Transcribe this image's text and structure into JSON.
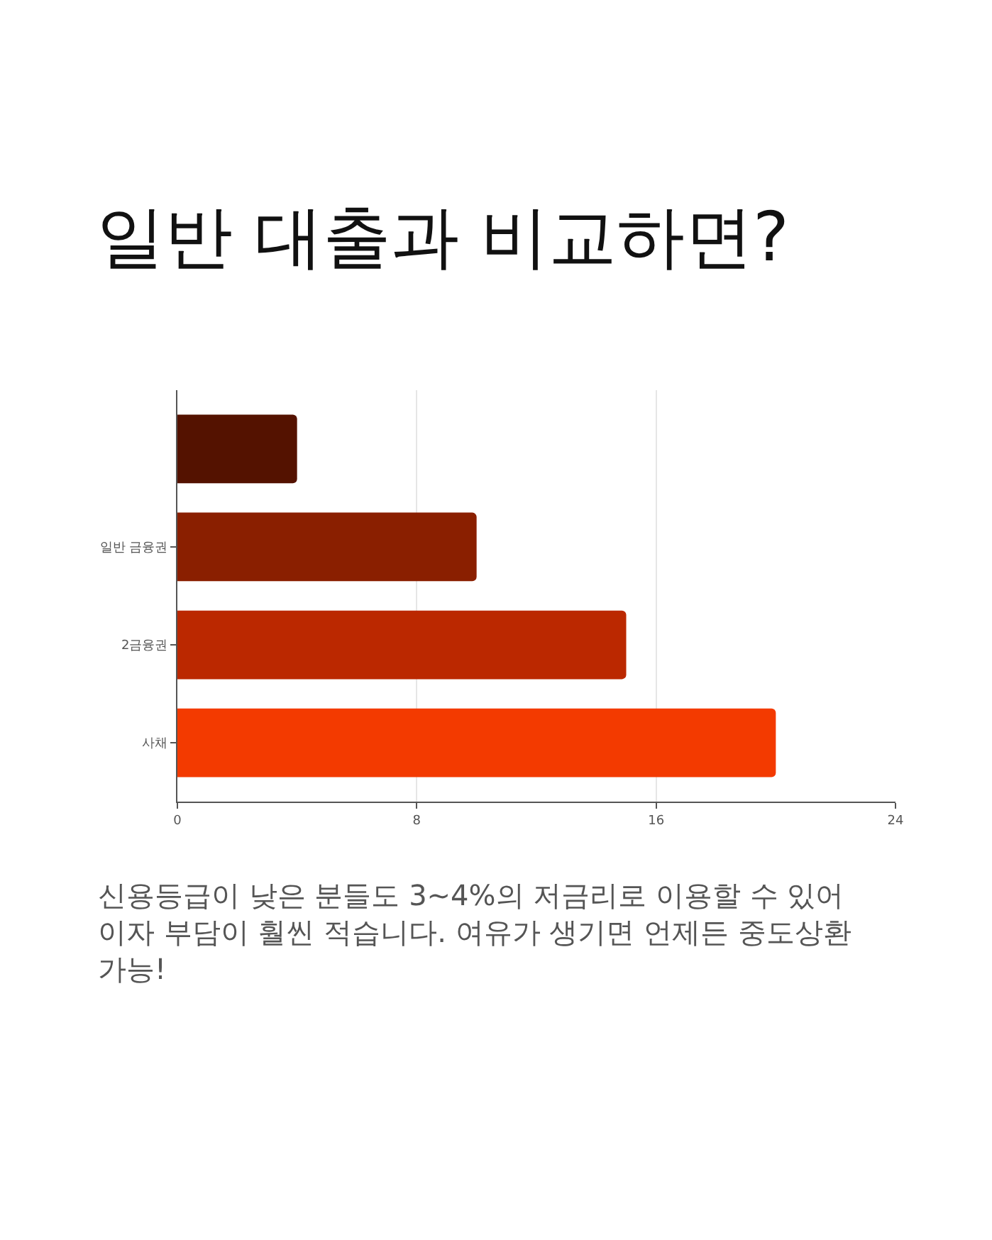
{
  "chart_data": {
    "type": "bar",
    "orientation": "horizontal",
    "title": "일반 대출과 비교하면?",
    "categories": [
      null,
      "일반 금융권",
      "2금융권",
      "사채"
    ],
    "values": [
      4,
      10,
      15,
      20
    ],
    "colors": [
      "#541200",
      "#8a1f00",
      "#bb2800",
      "#f33a00"
    ],
    "xlim": [
      0,
      24
    ],
    "xticks": [
      0,
      8,
      16,
      24
    ],
    "grid": "x",
    "annotations": [
      "신용등급이 낮은 분들도 3~4%의 저금리로 이용할 수 있어 이자 부담이 훨씬 적습니다. 여유가 생기면 언제든 중도상환 가능!"
    ]
  }
}
